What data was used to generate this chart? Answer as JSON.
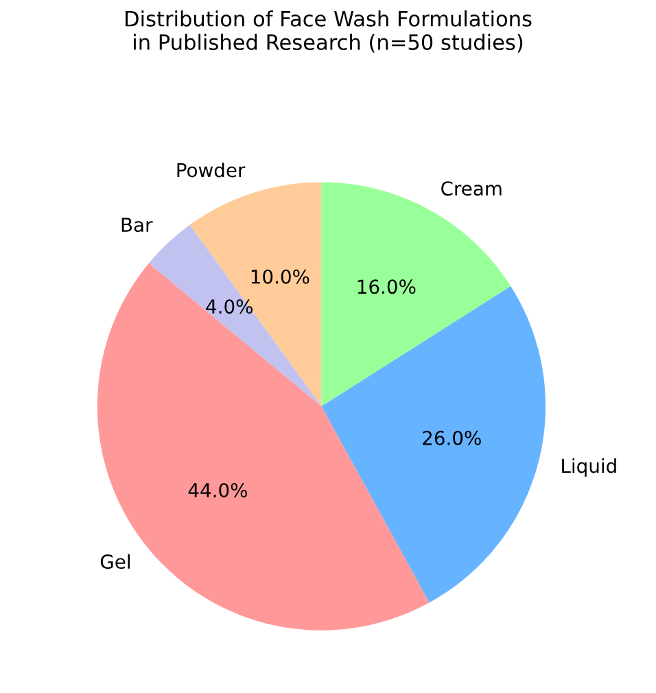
{
  "chart_data": {
    "type": "pie",
    "title": "Distribution of Face Wash Formulations\nin Published Research (n=50 studies)",
    "categories": [
      "Powder",
      "Bar",
      "Gel",
      "Liquid",
      "Cream"
    ],
    "values": [
      10,
      4,
      44,
      26,
      16
    ],
    "value_labels": [
      "10.0%",
      "4.0%",
      "44.0%",
      "26.0%",
      "16.0%"
    ],
    "colors": [
      "#ffcc99",
      "#c2c2f0",
      "#ff9999",
      "#66b3ff",
      "#99ff99"
    ]
  }
}
